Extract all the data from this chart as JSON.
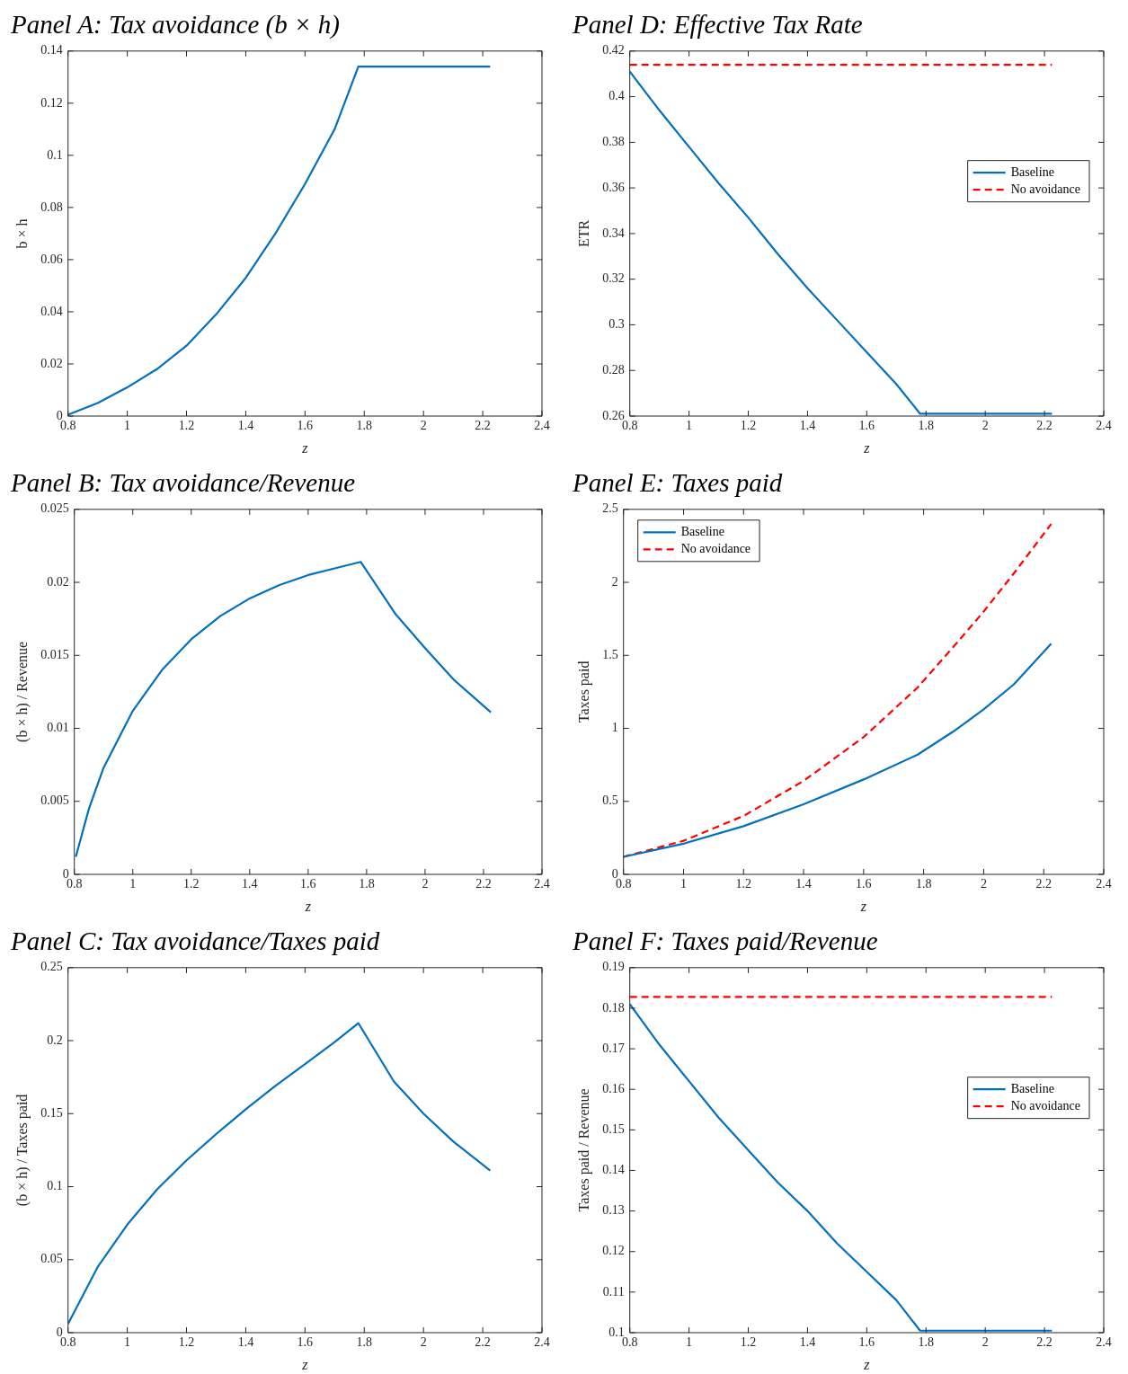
{
  "chart_data": [
    {
      "type": "line",
      "title": "Panel A: Tax avoidance (b × h)",
      "xlabel": "z",
      "ylabel": "b × h",
      "xlim": [
        0.8,
        2.4
      ],
      "xticks": [
        0.8,
        1,
        1.2,
        1.4,
        1.6,
        1.8,
        2,
        2.2,
        2.4
      ],
      "ylim": [
        0,
        0.14
      ],
      "yticks": [
        0,
        0.02,
        0.04,
        0.06,
        0.08,
        0.1,
        0.12,
        0.14
      ],
      "grid": false,
      "legend": false,
      "marker": "none",
      "x": [
        0.8,
        0.9,
        1.0,
        1.1,
        1.2,
        1.3,
        1.4,
        1.5,
        1.6,
        1.7,
        1.78,
        1.9,
        2.0,
        2.1,
        2.225
      ],
      "series": [
        {
          "color": "#0072bd",
          "line_style": "solid",
          "values": [
            0.0005,
            0.005,
            0.011,
            0.018,
            0.027,
            0.039,
            0.053,
            0.07,
            0.089,
            0.11,
            0.134,
            0.134,
            0.134,
            0.134,
            0.134
          ]
        }
      ]
    },
    {
      "type": "line",
      "title": "Panel D: Effective Tax Rate",
      "xlabel": "z",
      "ylabel": "ETR",
      "xlim": [
        0.8,
        2.4
      ],
      "xticks": [
        0.8,
        1,
        1.2,
        1.4,
        1.6,
        1.8,
        2,
        2.2,
        2.4
      ],
      "ylim": [
        0.26,
        0.42
      ],
      "yticks": [
        0.26,
        0.28,
        0.3,
        0.32,
        0.34,
        0.36,
        0.38,
        0.4,
        0.42
      ],
      "grid": false,
      "legend": "right",
      "marker": "none",
      "x": [
        0.8,
        0.9,
        1.0,
        1.1,
        1.2,
        1.3,
        1.4,
        1.5,
        1.6,
        1.7,
        1.78,
        1.9,
        2.0,
        2.1,
        2.225
      ],
      "series": [
        {
          "name": "Baseline",
          "color": "#0072bd",
          "line_style": "solid",
          "values": [
            0.411,
            0.394,
            0.378,
            0.362,
            0.347,
            0.331,
            0.316,
            0.302,
            0.288,
            0.274,
            0.261,
            0.261,
            0.261,
            0.261,
            0.261
          ]
        },
        {
          "name": "No avoidance",
          "color": "#ff0000",
          "line_style": "dashed",
          "values": [
            0.414,
            0.414,
            0.414,
            0.414,
            0.414,
            0.414,
            0.414,
            0.414,
            0.414,
            0.414,
            0.414,
            0.414,
            0.414,
            0.414,
            0.414
          ]
        }
      ]
    },
    {
      "type": "line",
      "title": "Panel B: Tax avoidance/Revenue",
      "xlabel": "z",
      "ylabel": "(b × h) / Revenue",
      "xlim": [
        0.8,
        2.4
      ],
      "xticks": [
        0.8,
        1,
        1.2,
        1.4,
        1.6,
        1.8,
        2,
        2.2,
        2.4
      ],
      "ylim": [
        0,
        0.025
      ],
      "yticks": [
        0,
        0.005,
        0.01,
        0.015,
        0.02,
        0.025
      ],
      "grid": false,
      "legend": false,
      "marker": "none",
      "x": [
        0.805,
        0.85,
        0.9,
        1.0,
        1.1,
        1.2,
        1.3,
        1.4,
        1.5,
        1.6,
        1.7,
        1.78,
        1.9,
        2.0,
        2.1,
        2.225
      ],
      "series": [
        {
          "color": "#0072bd",
          "line_style": "solid",
          "values": [
            0.0012,
            0.0045,
            0.0073,
            0.0112,
            0.014,
            0.0161,
            0.0177,
            0.0189,
            0.0198,
            0.0205,
            0.021,
            0.0214,
            0.0178,
            0.0155,
            0.0133,
            0.0111
          ]
        }
      ]
    },
    {
      "type": "line",
      "title": "Panel E: Taxes paid",
      "xlabel": "z",
      "ylabel": "Taxes paid",
      "xlim": [
        0.8,
        2.4
      ],
      "xticks": [
        0.8,
        1,
        1.2,
        1.4,
        1.6,
        1.8,
        2,
        2.2,
        2.4
      ],
      "ylim": [
        0,
        2.5
      ],
      "yticks": [
        0,
        0.5,
        1,
        1.5,
        2,
        2.5
      ],
      "grid": false,
      "legend": "top left",
      "marker": "none",
      "x": [
        0.8,
        1.0,
        1.2,
        1.4,
        1.6,
        1.78,
        1.9,
        2.0,
        2.1,
        2.225
      ],
      "series": [
        {
          "name": "Baseline",
          "color": "#0072bd",
          "line_style": "solid",
          "values": [
            0.12,
            0.21,
            0.33,
            0.48,
            0.65,
            0.82,
            0.98,
            1.13,
            1.3,
            1.58
          ]
        },
        {
          "name": "No avoidance",
          "color": "#ff0000",
          "line_style": "dashed",
          "values": [
            0.12,
            0.23,
            0.4,
            0.64,
            0.94,
            1.28,
            1.56,
            1.8,
            2.06,
            2.4
          ]
        }
      ]
    },
    {
      "type": "line",
      "title": "Panel C: Tax avoidance/Taxes paid",
      "xlabel": "z",
      "ylabel": "(b × h) / Taxes paid",
      "xlim": [
        0.8,
        2.4
      ],
      "xticks": [
        0.8,
        1,
        1.2,
        1.4,
        1.6,
        1.8,
        2,
        2.2,
        2.4
      ],
      "ylim": [
        0,
        0.25
      ],
      "yticks": [
        0,
        0.05,
        0.1,
        0.15,
        0.2,
        0.25
      ],
      "grid": false,
      "legend": false,
      "marker": "none",
      "x": [
        0.8,
        0.9,
        1.0,
        1.1,
        1.2,
        1.3,
        1.4,
        1.5,
        1.6,
        1.7,
        1.78,
        1.9,
        2.0,
        2.1,
        2.225
      ],
      "series": [
        {
          "color": "#0072bd",
          "line_style": "solid",
          "values": [
            0.006,
            0.045,
            0.074,
            0.098,
            0.118,
            0.136,
            0.153,
            0.169,
            0.184,
            0.199,
            0.212,
            0.172,
            0.15,
            0.131,
            0.111
          ]
        }
      ]
    },
    {
      "type": "line",
      "title": "Panel F: Taxes paid/Revenue",
      "xlabel": "z",
      "ylabel": "Taxes paid / Revenue",
      "xlim": [
        0.8,
        2.4
      ],
      "xticks": [
        0.8,
        1,
        1.2,
        1.4,
        1.6,
        1.8,
        2,
        2.2,
        2.4
      ],
      "ylim": [
        0.1,
        0.19
      ],
      "yticks": [
        0.1,
        0.11,
        0.12,
        0.13,
        0.14,
        0.15,
        0.16,
        0.17,
        0.18,
        0.19
      ],
      "grid": false,
      "legend": "right",
      "marker": "none",
      "x": [
        0.8,
        0.9,
        1.0,
        1.1,
        1.2,
        1.3,
        1.4,
        1.5,
        1.6,
        1.7,
        1.78,
        1.9,
        2.0,
        2.1,
        2.225
      ],
      "series": [
        {
          "name": "Baseline",
          "color": "#0072bd",
          "line_style": "solid",
          "values": [
            0.181,
            0.171,
            0.162,
            0.153,
            0.145,
            0.137,
            0.13,
            0.122,
            0.115,
            0.108,
            0.1005,
            0.1005,
            0.1005,
            0.1005,
            0.1005
          ]
        },
        {
          "name": "No avoidance",
          "color": "#ff0000",
          "line_style": "dashed",
          "values": [
            0.1828,
            0.1828,
            0.1828,
            0.1828,
            0.1828,
            0.1828,
            0.1828,
            0.1828,
            0.1828,
            0.1828,
            0.1828,
            0.1828,
            0.1828,
            0.1828,
            0.1828
          ]
        }
      ]
    }
  ]
}
